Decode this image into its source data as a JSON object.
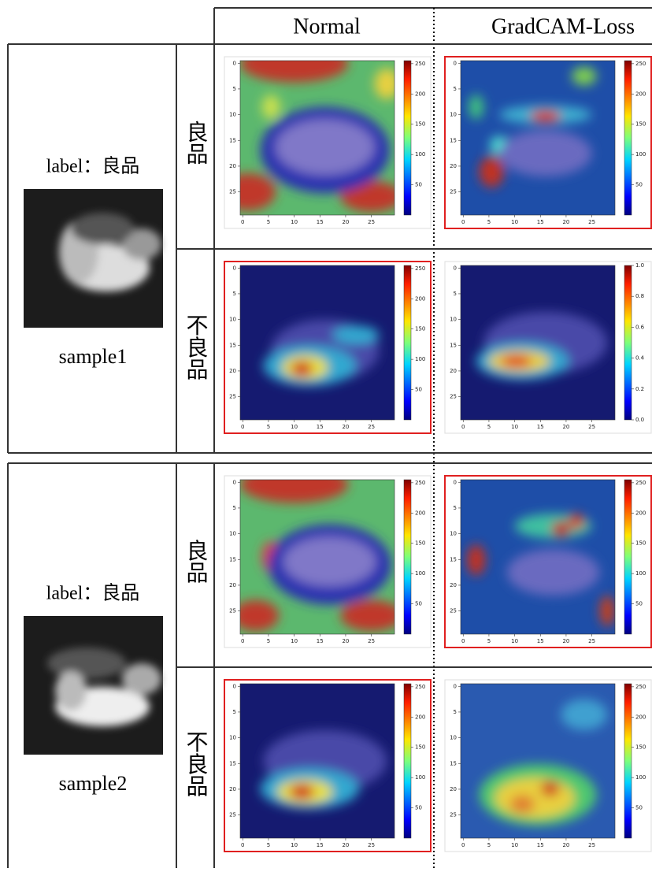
{
  "header": {
    "columns": [
      "Normal",
      "GradCAM-Loss"
    ]
  },
  "samples": [
    {
      "label": "label：良品",
      "name": "sample1",
      "rows": [
        {
          "row_label": "良品",
          "panels": [
            {
              "highlighted": false,
              "xticks": [
                0,
                5,
                10,
                15,
                20,
                25
              ],
              "yticks": [
                0,
                5,
                10,
                15,
                20,
                25
              ],
              "colorbar_ticks": [
                50,
                100,
                150,
                200,
                250
              ]
            },
            {
              "highlighted": true,
              "xticks": [
                0,
                5,
                10,
                15,
                20,
                25
              ],
              "yticks": [
                0,
                5,
                10,
                15,
                20,
                25
              ],
              "colorbar_ticks": [
                50,
                100,
                150,
                200,
                250
              ]
            }
          ]
        },
        {
          "row_label": "不良品",
          "panels": [
            {
              "highlighted": true,
              "xticks": [
                0,
                5,
                10,
                15,
                20,
                25
              ],
              "yticks": [
                0,
                5,
                10,
                15,
                20,
                25
              ],
              "colorbar_ticks": [
                50,
                100,
                150,
                200,
                250
              ]
            },
            {
              "highlighted": false,
              "xticks": [
                0,
                5,
                10,
                15,
                20,
                25
              ],
              "yticks": [
                0,
                5,
                10,
                15,
                20,
                25
              ],
              "colorbar_ticks": [
                "0.0",
                "0.2",
                "0.4",
                "0.6",
                "0.8",
                "1.0"
              ]
            }
          ]
        }
      ]
    },
    {
      "label": "label：良品",
      "name": "sample2",
      "rows": [
        {
          "row_label": "良品",
          "panels": [
            {
              "highlighted": false,
              "xticks": [
                0,
                5,
                10,
                15,
                20,
                25
              ],
              "yticks": [
                0,
                5,
                10,
                15,
                20,
                25
              ],
              "colorbar_ticks": [
                50,
                100,
                150,
                200,
                250
              ]
            },
            {
              "highlighted": true,
              "xticks": [
                0,
                5,
                10,
                15,
                20,
                25
              ],
              "yticks": [
                0,
                5,
                10,
                15,
                20,
                25
              ],
              "colorbar_ticks": [
                50,
                100,
                150,
                200,
                250
              ]
            }
          ]
        },
        {
          "row_label": "不良品",
          "panels": [
            {
              "highlighted": true,
              "xticks": [
                0,
                5,
                10,
                15,
                20,
                25
              ],
              "yticks": [
                0,
                5,
                10,
                15,
                20,
                25
              ],
              "colorbar_ticks": [
                50,
                100,
                150,
                200,
                250
              ]
            },
            {
              "highlighted": false,
              "xticks": [
                0,
                5,
                10,
                15,
                20,
                25
              ],
              "yticks": [
                0,
                5,
                10,
                15,
                20,
                25
              ],
              "colorbar_ticks": [
                50,
                100,
                150,
                200,
                250
              ]
            }
          ]
        }
      ]
    }
  ]
}
